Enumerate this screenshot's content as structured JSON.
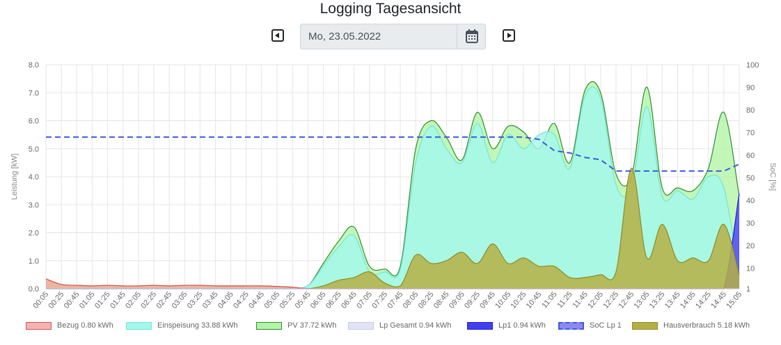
{
  "header": {
    "title": "Logging Tagesansicht",
    "prev_icon": "caret-left-square-icon",
    "next_icon": "caret-right-square-icon",
    "calendar_icon": "calendar-icon"
  },
  "date_input": {
    "value": "Mo, 23.05.2022"
  },
  "chart_data": {
    "type": "area",
    "title": "",
    "xlabel": "",
    "ylabel": "Leistung [kW]",
    "ylim": [
      0,
      8
    ],
    "yticks": [
      "0.0",
      "1.0",
      "2.0",
      "3.0",
      "4.0",
      "5.0",
      "6.0",
      "7.0",
      "8.0"
    ],
    "y2label": "SoC [%]",
    "y2lim": [
      1,
      100
    ],
    "y2ticks": [
      "1",
      "10",
      "20",
      "30",
      "40",
      "50",
      "60",
      "70",
      "80",
      "90",
      "100"
    ],
    "grid": true,
    "legend_position": "bottom",
    "x": [
      "00:05",
      "00:25",
      "00:45",
      "01:05",
      "01:25",
      "01:45",
      "02:05",
      "02:25",
      "02:45",
      "03:05",
      "03:25",
      "03:45",
      "04:05",
      "04:25",
      "04:45",
      "05:05",
      "05:25",
      "05:45",
      "06:05",
      "06:25",
      "06:45",
      "07:05",
      "07:25",
      "07:45",
      "08:05",
      "08:25",
      "08:45",
      "09:05",
      "09:25",
      "09:45",
      "10:05",
      "10:25",
      "10:45",
      "11:05",
      "11:25",
      "11:45",
      "12:05",
      "12:25",
      "12:45",
      "13:05",
      "13:25",
      "13:45",
      "14:05",
      "14:25",
      "14:45",
      "15:05"
    ],
    "series": [
      {
        "name": "Bezug 0.80 kWh",
        "axis": "left",
        "fill": "#f5b3b3",
        "stroke": "#d9534f",
        "values": [
          0.35,
          0.15,
          0.12,
          0.1,
          0.12,
          0.1,
          0.1,
          0.12,
          0.1,
          0.12,
          0.12,
          0.1,
          0.1,
          0.1,
          0.1,
          0.08,
          0.05,
          0.0,
          0,
          0,
          0,
          0,
          0,
          0,
          0,
          0,
          0,
          0,
          0,
          0,
          0,
          0,
          0,
          0,
          0,
          0,
          0,
          0,
          0,
          0,
          0,
          0,
          0,
          0,
          0,
          0
        ]
      },
      {
        "name": "Einspeisung 33.88 kWh",
        "axis": "left",
        "fill": "#a3f7ee",
        "stroke": "#6fe6d9",
        "values": [
          0,
          0,
          0,
          0,
          0,
          0,
          0,
          0,
          0,
          0,
          0,
          0,
          0,
          0,
          0,
          0,
          0,
          0.1,
          0.8,
          1.5,
          1.9,
          0.6,
          0.6,
          0.7,
          4.5,
          5.8,
          5.0,
          4.5,
          5.9,
          4.5,
          5.5,
          5.0,
          5.5,
          5.5,
          4.3,
          6.9,
          6.8,
          3.7,
          3.6,
          6.5,
          3.3,
          3.5,
          3.2,
          4.0,
          3.6,
          0.4
        ]
      },
      {
        "name": "PV 37.72 kWh",
        "axis": "left",
        "fill": "#b3f5a8",
        "stroke": "#2e8b2e",
        "values": [
          0,
          0,
          0,
          0,
          0,
          0,
          0,
          0,
          0,
          0,
          0,
          0,
          0,
          0,
          0,
          0,
          0,
          0.1,
          0.9,
          1.7,
          2.2,
          0.8,
          0.7,
          0.8,
          5.0,
          6.0,
          5.4,
          4.6,
          6.3,
          5.0,
          5.8,
          5.6,
          5.0,
          5.9,
          4.5,
          7.1,
          7.0,
          4.1,
          4.0,
          7.2,
          3.6,
          3.6,
          3.5,
          4.3,
          6.3,
          3.3
        ]
      },
      {
        "name": "Lp Gesamt 0.94 kWh",
        "axis": "left",
        "fill": "#e2e2f7",
        "stroke": "#c8c8ee",
        "values": [
          0,
          0,
          0,
          0,
          0,
          0,
          0,
          0,
          0,
          0,
          0,
          0,
          0,
          0,
          0,
          0,
          0,
          0,
          0,
          0,
          0,
          0,
          0,
          0,
          0,
          0,
          0,
          0,
          0,
          0,
          0,
          0,
          0,
          0,
          0,
          0,
          0,
          0,
          0,
          0,
          0,
          0,
          0,
          0,
          0,
          3.4
        ]
      },
      {
        "name": "Lp1 0.94 kWh",
        "axis": "left",
        "fill": "#4040f0",
        "stroke": "#2020cc",
        "values": [
          0,
          0,
          0,
          0,
          0,
          0,
          0,
          0,
          0,
          0,
          0,
          0,
          0,
          0,
          0,
          0,
          0,
          0,
          0,
          0,
          0,
          0,
          0,
          0,
          0,
          0,
          0,
          0,
          0,
          0,
          0,
          0,
          0,
          0,
          0,
          0,
          0,
          0,
          0,
          0,
          0,
          0,
          0,
          0,
          0,
          3.4
        ]
      },
      {
        "name": "SoC Lp 1",
        "axis": "right",
        "fill": "#8a8af2",
        "stroke": "#3d5bd6",
        "dashed": true,
        "values": [
          68,
          68,
          68,
          68,
          68,
          68,
          68,
          68,
          68,
          68,
          68,
          68,
          68,
          68,
          68,
          68,
          68,
          68,
          68,
          68,
          68,
          68,
          68,
          68,
          68,
          68,
          68,
          68,
          68,
          68,
          68,
          68,
          67,
          62,
          61,
          59,
          58,
          53,
          53,
          53,
          53,
          53,
          53,
          53,
          53,
          56
        ]
      },
      {
        "name": "Hausverbrauch 5.18 kWh",
        "axis": "left",
        "fill": "#b5b044",
        "stroke": "#8f8a25",
        "values": [
          0.35,
          0.15,
          0.12,
          0.1,
          0.12,
          0.1,
          0.1,
          0.12,
          0.1,
          0.12,
          0.12,
          0.1,
          0.1,
          0.1,
          0.1,
          0.08,
          0.05,
          0.0,
          0.1,
          0.3,
          0.4,
          0.6,
          0.2,
          0.1,
          1.2,
          0.9,
          1.0,
          1.3,
          0.9,
          1.6,
          0.9,
          1.1,
          0.8,
          0.8,
          0.4,
          0.4,
          0.5,
          0.6,
          4.3,
          1.1,
          2.3,
          1.0,
          1.1,
          1.0,
          2.3,
          0.5
        ]
      }
    ]
  }
}
